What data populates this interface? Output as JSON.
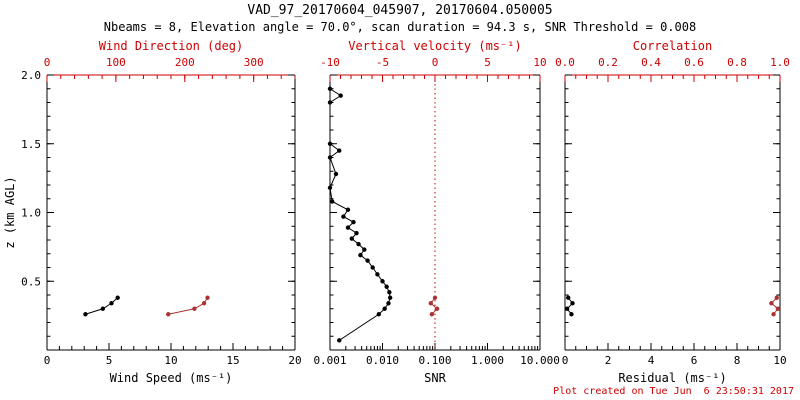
{
  "header": {
    "title": "VAD_97_20170604_045907, 20170604.050005",
    "subtitle": "Nbeams = 8, Elevation angle = 70.0°, scan duration = 94.3 s, SNR Threshold = 0.008"
  },
  "footer": {
    "created": "Plot created on Tue Jun  6 23:50:31 2017"
  },
  "colors": {
    "axis_black": "#000000",
    "axis_red": "#cc0000",
    "series_black": "#000000",
    "series_red": "#aa3333"
  },
  "chart_data": {
    "type": "line",
    "title": "VAD_97_20170604_045907, 20170604.050005",
    "ylabel": "z (km AGL)",
    "ylim": [
      0,
      2.0
    ],
    "grid": false,
    "panels": [
      {
        "id": "wind",
        "xlabel": "Wind Speed (ms⁻¹)",
        "x_scale": "linear",
        "xlim": [
          0,
          20
        ],
        "xticks": [
          0,
          5,
          10,
          15,
          20
        ],
        "xtick_labels": [
          "0",
          "5",
          "10",
          "15",
          "20"
        ],
        "top_label": "Wind Direction (deg)",
        "top_xlim": [
          0,
          360
        ],
        "top_ticks": [
          0,
          100,
          200,
          300
        ],
        "top_tick_labels": [
          "0",
          "100",
          "200",
          "300"
        ],
        "ylabel": "z (km AGL)",
        "ylim": [
          0,
          2
        ],
        "yticks": [
          0.5,
          1.0,
          1.5,
          2.0
        ],
        "ytick_labels": [
          "0.5",
          "1.0",
          "1.5",
          "2.0"
        ],
        "series": [
          {
            "name": "wind-speed",
            "axis": "bottom",
            "color": "black",
            "points": [
              [
                3.1,
                0.26
              ],
              [
                4.5,
                0.3
              ],
              [
                5.2,
                0.34
              ],
              [
                5.7,
                0.38
              ]
            ]
          },
          {
            "name": "wind-direction",
            "axis": "top",
            "color": "red",
            "points": [
              [
                176,
                0.26
              ],
              [
                214,
                0.3
              ],
              [
                228,
                0.34
              ],
              [
                233,
                0.38
              ]
            ]
          }
        ]
      },
      {
        "id": "snr",
        "xlabel": "SNR",
        "x_scale": "log",
        "xlim": [
          0.001,
          10
        ],
        "xticks": [
          0.001,
          0.01,
          0.1,
          1,
          10
        ],
        "xtick_labels": [
          "0.001",
          "0.010",
          "0.100",
          "1.000",
          "10.000"
        ],
        "top_label": "Vertical velocity (ms⁻¹)",
        "top_xlim": [
          -10,
          10
        ],
        "top_ticks": [
          -10,
          -5,
          0,
          5,
          10
        ],
        "top_tick_labels": [
          "-10",
          "-5",
          "0",
          "5",
          "10"
        ],
        "ylim": [
          0,
          2
        ],
        "yticks": [
          0.5,
          1.0,
          1.5,
          2.0
        ],
        "ytick_labels": [],
        "ref_line": {
          "axis": "top",
          "value": 0,
          "style": "dotted"
        },
        "series": [
          {
            "name": "snr-profile",
            "axis": "bottom",
            "color": "black",
            "points": [
              [
                0.001,
                1.9
              ],
              [
                0.0016,
                1.85
              ],
              [
                0.001,
                1.8
              ],
              [
                0.001,
                1.5
              ],
              [
                0.0015,
                1.45
              ],
              [
                0.001,
                1.4
              ],
              [
                0.0013,
                1.28
              ],
              [
                0.001,
                1.18
              ],
              [
                0.0011,
                1.08
              ],
              [
                0.0022,
                1.02
              ],
              [
                0.0018,
                0.97
              ],
              [
                0.0028,
                0.93
              ],
              [
                0.0022,
                0.89
              ],
              [
                0.0032,
                0.85
              ],
              [
                0.0026,
                0.81
              ],
              [
                0.0035,
                0.77
              ],
              [
                0.0045,
                0.73
              ],
              [
                0.0038,
                0.69
              ],
              [
                0.0052,
                0.65
              ],
              [
                0.0065,
                0.6
              ],
              [
                0.008,
                0.55
              ],
              [
                0.01,
                0.5
              ],
              [
                0.012,
                0.46
              ],
              [
                0.0135,
                0.42
              ],
              [
                0.014,
                0.38
              ],
              [
                0.013,
                0.34
              ],
              [
                0.011,
                0.3
              ],
              [
                0.0085,
                0.26
              ],
              [
                0.0015,
                0.07
              ]
            ]
          },
          {
            "name": "vertical-velocity",
            "axis": "top",
            "color": "red",
            "points": [
              [
                -0.3,
                0.26
              ],
              [
                0.2,
                0.3
              ],
              [
                -0.4,
                0.34
              ],
              [
                0.0,
                0.38
              ]
            ]
          }
        ]
      },
      {
        "id": "residual",
        "xlabel": "Residual (ms⁻¹)",
        "x_scale": "linear",
        "xlim": [
          0,
          10
        ],
        "xticks": [
          0,
          2,
          4,
          6,
          8,
          10
        ],
        "xtick_labels": [
          "0",
          "2",
          "4",
          "6",
          "8",
          "10"
        ],
        "top_label": "Correlation",
        "top_xlim": [
          0,
          1
        ],
        "top_ticks": [
          0,
          0.2,
          0.4,
          0.6,
          0.8,
          1.0
        ],
        "top_tick_labels": [
          "0.0",
          "0.2",
          "0.4",
          "0.6",
          "0.8",
          "1.0"
        ],
        "ylim": [
          0,
          2
        ],
        "yticks": [
          0.5,
          1.0,
          1.5,
          2.0
        ],
        "ytick_labels": [],
        "series": [
          {
            "name": "residual",
            "axis": "bottom",
            "color": "black",
            "points": [
              [
                0.3,
                0.26
              ],
              [
                0.1,
                0.3
              ],
              [
                0.35,
                0.34
              ],
              [
                0.15,
                0.38
              ]
            ]
          },
          {
            "name": "correlation",
            "axis": "top",
            "color": "red",
            "points": [
              [
                0.97,
                0.26
              ],
              [
                0.99,
                0.3
              ],
              [
                0.96,
                0.34
              ],
              [
                0.985,
                0.38
              ]
            ]
          }
        ]
      }
    ]
  }
}
